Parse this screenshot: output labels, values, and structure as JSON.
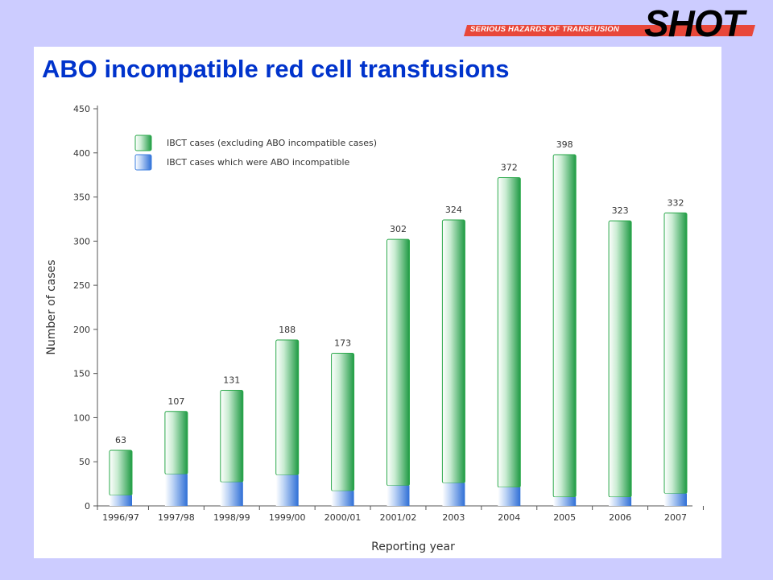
{
  "header": {
    "brand_line": "SERIOUS HAZARDS OF TRANSFUSION",
    "logo": "SHOT",
    "accent_color": "#e8473a"
  },
  "slide": {
    "title": "ABO incompatible red cell transfusions"
  },
  "chart_data": {
    "type": "bar",
    "stacked": true,
    "categories": [
      "1996/97",
      "1997/98",
      "1998/99",
      "1999/00",
      "2000/01",
      "2001/02",
      "2003",
      "2004",
      "2005",
      "2006",
      "2007"
    ],
    "totals": [
      63,
      107,
      131,
      188,
      173,
      302,
      324,
      372,
      398,
      323,
      332
    ],
    "series": [
      {
        "name": "IBCT cases (excluding ABO incompatible cases)",
        "color": "#2aa84a",
        "values": [
          51,
          71,
          104,
          153,
          156,
          279,
          298,
          351,
          388,
          313,
          318
        ]
      },
      {
        "name": "IBCT cases which were ABO incompatible",
        "color": "#3d7fe0",
        "values": [
          12,
          36,
          27,
          35,
          17,
          23,
          26,
          21,
          10,
          10,
          14
        ]
      }
    ],
    "xlabel": "Reporting year",
    "ylabel": "Number of cases",
    "ylim": [
      0,
      450
    ],
    "yticks": [
      0,
      50,
      100,
      150,
      200,
      250,
      300,
      350,
      400,
      450
    ],
    "legend_position": "top-left",
    "grid": false
  }
}
